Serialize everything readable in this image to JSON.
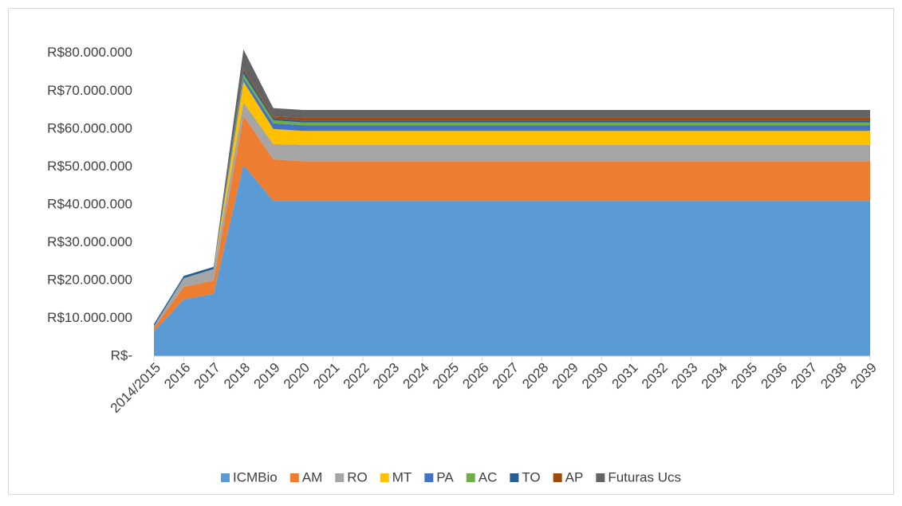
{
  "chart_data": {
    "type": "area",
    "categories": [
      "2014/2015",
      "2016",
      "2017",
      "2018",
      "2019",
      "2020",
      "2021",
      "2022",
      "2023",
      "2024",
      "2025",
      "2026",
      "2027",
      "2028",
      "2029",
      "2030",
      "2031",
      "2032",
      "2033",
      "2034",
      "2035",
      "2036",
      "2037",
      "2038",
      "2039"
    ],
    "stacked": true,
    "series": [
      {
        "name": "ICMBio",
        "color": "#5b9bd5",
        "values": [
          6500000,
          15000000,
          16500000,
          50500000,
          41000000,
          41000000,
          41000000,
          41000000,
          41000000,
          41000000,
          41000000,
          41000000,
          41000000,
          41000000,
          41000000,
          41000000,
          41000000,
          41000000,
          41000000,
          41000000,
          41000000,
          41000000,
          41000000,
          41000000,
          41000000
        ]
      },
      {
        "name": "AM",
        "color": "#ed7d31",
        "values": [
          1000000,
          3300000,
          3500000,
          13000000,
          11000000,
          10500000,
          10500000,
          10500000,
          10500000,
          10500000,
          10500000,
          10500000,
          10500000,
          10500000,
          10500000,
          10500000,
          10500000,
          10500000,
          10500000,
          10500000,
          10500000,
          10500000,
          10500000,
          10500000,
          10500000
        ]
      },
      {
        "name": "RO",
        "color": "#a5a5a5",
        "values": [
          300000,
          2300000,
          3000000,
          3500000,
          4000000,
          4300000,
          4300000,
          4300000,
          4300000,
          4300000,
          4300000,
          4300000,
          4300000,
          4300000,
          4300000,
          4300000,
          4300000,
          4300000,
          4300000,
          4300000,
          4300000,
          4300000,
          4300000,
          4300000,
          4300000
        ]
      },
      {
        "name": "MT",
        "color": "#ffc000",
        "values": [
          0,
          0,
          0,
          5500000,
          4000000,
          3700000,
          3700000,
          3700000,
          3700000,
          3700000,
          3700000,
          3700000,
          3700000,
          3700000,
          3700000,
          3700000,
          3700000,
          3700000,
          3700000,
          3700000,
          3700000,
          3700000,
          3700000,
          3700000,
          3700000
        ]
      },
      {
        "name": "PA",
        "color": "#4472c4",
        "values": [
          200000,
          0,
          0,
          1000000,
          1500000,
          1500000,
          1500000,
          1500000,
          1500000,
          1500000,
          1500000,
          1500000,
          1500000,
          1500000,
          1500000,
          1500000,
          1500000,
          1500000,
          1500000,
          1500000,
          1500000,
          1500000,
          1500000,
          1500000,
          1500000
        ]
      },
      {
        "name": "AC",
        "color": "#70ad47",
        "values": [
          0,
          0,
          0,
          1000000,
          800000,
          700000,
          700000,
          700000,
          700000,
          700000,
          700000,
          700000,
          700000,
          700000,
          700000,
          700000,
          700000,
          700000,
          700000,
          700000,
          700000,
          700000,
          700000,
          700000,
          700000
        ]
      },
      {
        "name": "TO",
        "color": "#255e91",
        "values": [
          500000,
          600000,
          600000,
          1000000,
          500000,
          500000,
          500000,
          500000,
          500000,
          500000,
          500000,
          500000,
          500000,
          500000,
          500000,
          500000,
          500000,
          500000,
          500000,
          500000,
          500000,
          500000,
          500000,
          500000,
          500000
        ]
      },
      {
        "name": "AP",
        "color": "#9e480e",
        "values": [
          0,
          0,
          0,
          500000,
          500000,
          800000,
          800000,
          800000,
          800000,
          800000,
          800000,
          800000,
          800000,
          800000,
          800000,
          800000,
          800000,
          800000,
          800000,
          800000,
          800000,
          800000,
          800000,
          800000,
          800000
        ]
      },
      {
        "name": "Futuras Ucs",
        "color": "#636363",
        "values": [
          0,
          0,
          0,
          5000000,
          2200000,
          2000000,
          2000000,
          2000000,
          2000000,
          2000000,
          2000000,
          2000000,
          2000000,
          2000000,
          2000000,
          2000000,
          2000000,
          2000000,
          2000000,
          2000000,
          2000000,
          2000000,
          2000000,
          2000000,
          2000000
        ]
      }
    ],
    "ylim": [
      0,
      85000000
    ],
    "yticks": [
      {
        "value": 0,
        "label": "R$-"
      },
      {
        "value": 10000000,
        "label": "R$10.000.000"
      },
      {
        "value": 20000000,
        "label": "R$20.000.000"
      },
      {
        "value": 30000000,
        "label": "R$30.000.000"
      },
      {
        "value": 40000000,
        "label": "R$40.000.000"
      },
      {
        "value": 50000000,
        "label": "R$50.000.000"
      },
      {
        "value": 60000000,
        "label": "R$60.000.000"
      },
      {
        "value": 70000000,
        "label": "R$70.000.000"
      },
      {
        "value": 80000000,
        "label": "R$80.000.000"
      }
    ],
    "grid": false,
    "legend": "bottom"
  }
}
